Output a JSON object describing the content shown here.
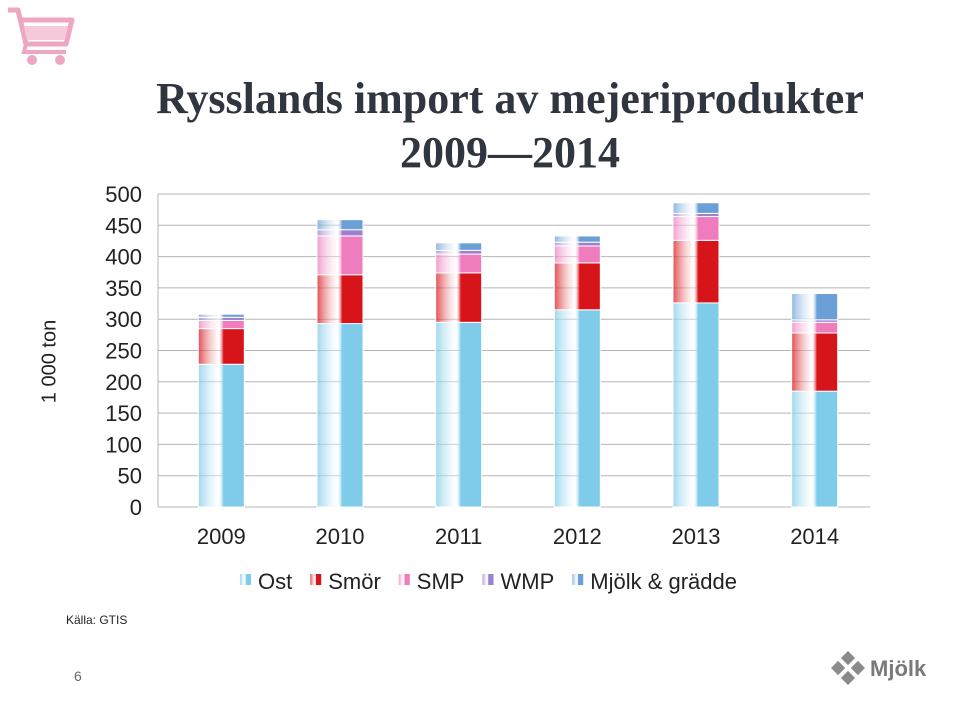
{
  "title_line1": "Rysslands import av mejeriprodukter",
  "title_line2": "2009—2014",
  "source": "Källa: GTIS",
  "page_number": "6",
  "logo_text": "Mjölk",
  "chart_data": {
    "type": "bar",
    "stacked": true,
    "ylabel": "1 000 ton",
    "ylim": [
      0,
      500
    ],
    "yticks": [
      0,
      50,
      100,
      150,
      200,
      250,
      300,
      350,
      400,
      450,
      500
    ],
    "grid": true,
    "legend_position": "bottom",
    "categories": [
      "2009",
      "2010",
      "2011",
      "2012",
      "2013",
      "2014"
    ],
    "series": [
      {
        "name": "Ost",
        "color": "#7ecbea",
        "values": [
          228,
          293,
          295,
          315,
          326,
          185
        ]
      },
      {
        "name": "Smör",
        "color": "#d8141b",
        "values": [
          57,
          78,
          79,
          75,
          100,
          93
        ]
      },
      {
        "name": "SMP",
        "color": "#ef7dbd",
        "values": [
          13,
          62,
          30,
          27,
          38,
          17
        ]
      },
      {
        "name": "WMP",
        "color": "#9b7fd1",
        "values": [
          5,
          10,
          6,
          6,
          5,
          4
        ]
      },
      {
        "name": "Mjölk & grädde",
        "color": "#6a9fd8",
        "values": [
          5,
          16,
          12,
          10,
          17,
          42
        ]
      }
    ]
  }
}
